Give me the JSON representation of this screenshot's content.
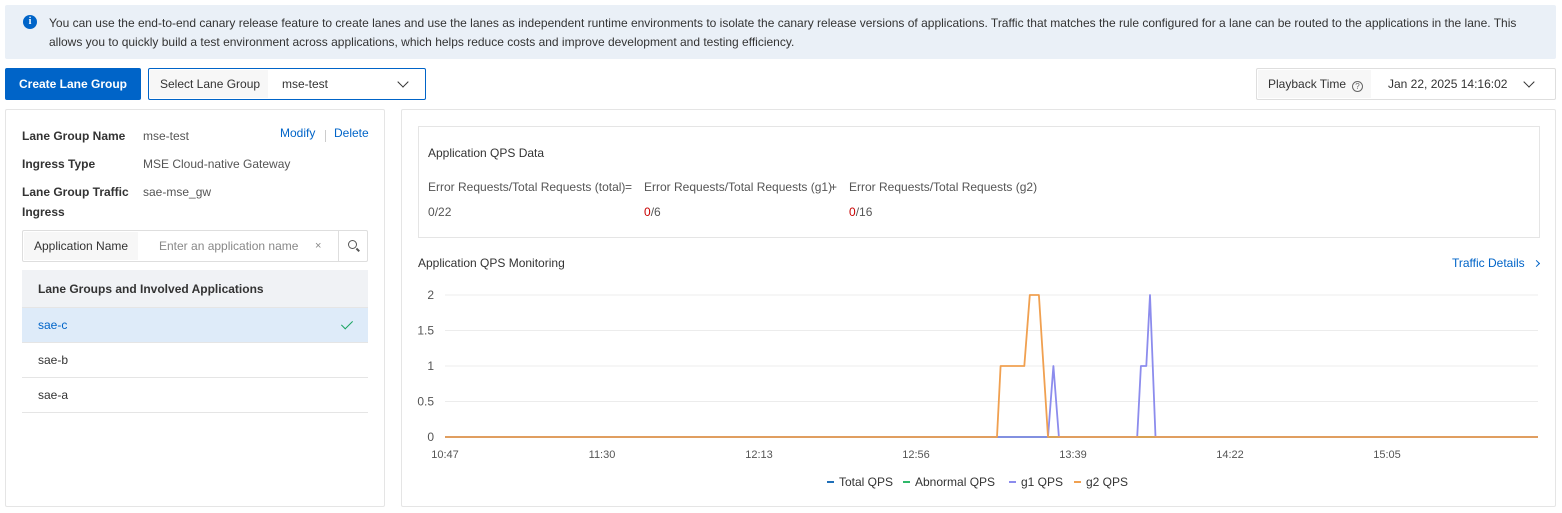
{
  "banner": {
    "icon": "info-icon",
    "text": "You can use the end-to-end canary release feature to create lanes and use the lanes as independent runtime environments to isolate the canary release versions of applications. Traffic that matches the rule configured for a lane can be routed to the applications in the lane. This allows you to quickly build a test environment across applications, which helps reduce costs and improve development and testing efficiency."
  },
  "toolbar": {
    "create_label": "Create Lane Group",
    "select_label": "Select Lane Group",
    "select_value": "mse-test",
    "playback_label": "Playback Time",
    "playback_help": "?",
    "playback_value": "Jan 22, 2025 14:16:02"
  },
  "lane_group": {
    "name_label": "Lane Group Name",
    "name_value": "mse-test",
    "modify_label": "Modify",
    "delete_label": "Delete",
    "ingress_type_label": "Ingress Type",
    "ingress_type_value": "MSE Cloud-native Gateway",
    "traffic_ingress_label_1": "Lane Group Traffic",
    "traffic_ingress_label_2": "Ingress",
    "traffic_ingress_value": "sae-mse_gw"
  },
  "search": {
    "label": "Application Name",
    "placeholder": "Enter an application name",
    "clear": "×"
  },
  "app_list": {
    "header": "Lane Groups and Involved Applications",
    "items": [
      {
        "label": "sae-c",
        "selected": true
      },
      {
        "label": "sae-b",
        "selected": false
      },
      {
        "label": "sae-a",
        "selected": false
      }
    ]
  },
  "qps_data": {
    "title": "Application QPS Data",
    "total_label": "Error Requests/Total Requests (total)",
    "eq": "=",
    "g1_label": "Error Requests/Total Requests (g1)",
    "plus": "+",
    "g2_label": "Error Requests/Total Requests (g2)",
    "total_err": "0",
    "total_all": "/22",
    "g1_err": "0",
    "g1_all": "/6",
    "g2_err": "0",
    "g2_all": "/16"
  },
  "monitoring": {
    "title": "Application QPS Monitoring",
    "traffic_details": "Traffic Details"
  },
  "colors": {
    "primary": "#0064c8",
    "error": "#c80000",
    "total": "#1f6fb8",
    "abnormal": "#2fb86a",
    "g1": "#8c8ced",
    "g2": "#f0a050"
  },
  "chart_data": {
    "type": "line",
    "xlabel": "",
    "ylabel": "",
    "x_ticks": [
      "10:47",
      "11:30",
      "12:13",
      "12:56",
      "13:39",
      "14:22",
      "15:05"
    ],
    "y_ticks": [
      "0",
      "0.5",
      "1",
      "1.5",
      "2"
    ],
    "ylim": [
      0,
      2
    ],
    "x_start_min": 647,
    "x_end_min": 947,
    "grid": true,
    "legend_position": "bottom",
    "series": [
      {
        "name": "Total QPS",
        "color": "#1f6fb8",
        "points": [
          [
            647,
            0
          ],
          [
            947,
            0
          ]
        ]
      },
      {
        "name": "Abnormal QPS",
        "color": "#2fb86a",
        "points": [
          [
            647,
            0
          ],
          [
            947,
            0
          ]
        ]
      },
      {
        "name": "g1 QPS",
        "color": "#8c8ced",
        "points": [
          [
            647,
            0
          ],
          [
            798,
            0
          ],
          [
            812,
            0
          ],
          [
            812.5,
            0
          ],
          [
            814,
            1
          ],
          [
            815.5,
            0
          ],
          [
            837,
            0
          ],
          [
            838,
            1
          ],
          [
            839.5,
            1
          ],
          [
            840.5,
            2
          ],
          [
            842,
            0
          ],
          [
            947,
            0
          ]
        ]
      },
      {
        "name": "g2 QPS",
        "color": "#f0a050",
        "points": [
          [
            647,
            0
          ],
          [
            798.5,
            0
          ],
          [
            799.5,
            1
          ],
          [
            806,
            1
          ],
          [
            807.5,
            2
          ],
          [
            810,
            2
          ],
          [
            812.5,
            0
          ],
          [
            947,
            0
          ]
        ]
      }
    ]
  }
}
